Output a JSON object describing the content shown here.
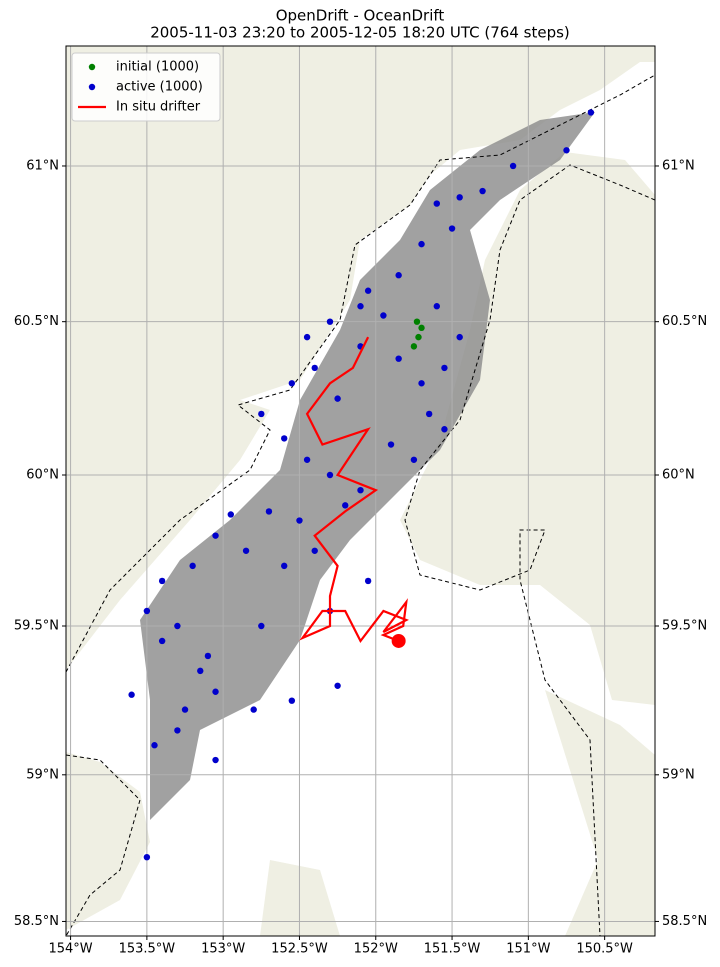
{
  "chart_data": {
    "type": "scatter",
    "title": "OpenDrift - OceanDrift",
    "subtitle": "2005-11-03 23:20 to 2005-12-05 18:20 UTC (764 steps)",
    "xlim": [
      -154.03,
      -150.17
    ],
    "ylim": [
      58.45,
      61.38
    ],
    "xticks": [
      {
        "value": -154,
        "label": "154°W"
      },
      {
        "value": -153.5,
        "label": "153.5°W"
      },
      {
        "value": -153,
        "label": "153°W"
      },
      {
        "value": -152.5,
        "label": "152.5°W"
      },
      {
        "value": -152,
        "label": "152°W"
      },
      {
        "value": -151.5,
        "label": "151.5°W"
      },
      {
        "value": -151,
        "label": "151°W"
      },
      {
        "value": -150.5,
        "label": "150.5°W"
      }
    ],
    "yticks": [
      {
        "value": 58.5,
        "label": "58.5°N"
      },
      {
        "value": 59,
        "label": "59°N"
      },
      {
        "value": 59.5,
        "label": "59.5°N"
      },
      {
        "value": 60,
        "label": "60°N"
      },
      {
        "value": 60.5,
        "label": "60.5°N"
      },
      {
        "value": 61,
        "label": "61°N"
      }
    ],
    "grid": true,
    "legend": "upper left",
    "series": [
      {
        "name": "initial (1000)",
        "color": "#008000",
        "type": "scatter",
        "x": [
          -151.72,
          -151.7,
          -151.75,
          -151.73
        ],
        "values": [
          60.45,
          60.48,
          60.42,
          60.5
        ]
      },
      {
        "name": "active (1000)",
        "color": "#0000cc",
        "type": "scatter",
        "x": [
          -150.59,
          -150.75,
          -151.1,
          -151.3,
          -151.45,
          -151.6,
          -151.5,
          -151.7,
          -151.85,
          -152.05,
          -151.95,
          -151.6,
          -151.45,
          -151.55,
          -151.7,
          -151.85,
          -152.1,
          -152.3,
          -152.4,
          -152.55,
          -152.75,
          -152.6,
          -152.45,
          -152.3,
          -152.1,
          -151.9,
          -151.65,
          -151.55,
          -151.75,
          -152.2,
          -152.5,
          -152.7,
          -152.95,
          -153.05,
          -152.85,
          -152.6,
          -152.4,
          -153.2,
          -153.4,
          -153.5,
          -153.3,
          -153.4,
          -153.15,
          -153.05,
          -153.25,
          -153.3,
          -153.45,
          -153.05,
          -153.6,
          -152.55,
          -152.8,
          -152.25,
          -153.5,
          -153.1,
          -152.75,
          -152.3,
          -152.05,
          -152.25,
          -152.45,
          -152.1
        ],
        "values": [
          61.17,
          61.05,
          61.0,
          60.92,
          60.9,
          60.88,
          60.8,
          60.75,
          60.65,
          60.6,
          60.52,
          60.55,
          60.45,
          60.35,
          60.3,
          60.38,
          60.42,
          60.5,
          60.35,
          60.3,
          60.2,
          60.12,
          60.05,
          60.0,
          59.95,
          60.1,
          60.2,
          60.15,
          60.05,
          59.9,
          59.85,
          59.88,
          59.87,
          59.8,
          59.75,
          59.7,
          59.75,
          59.7,
          59.65,
          59.55,
          59.5,
          59.45,
          59.35,
          59.28,
          59.22,
          59.15,
          59.1,
          59.05,
          59.27,
          59.25,
          59.22,
          59.3,
          58.72,
          59.4,
          59.5,
          59.55,
          59.65,
          60.25,
          60.45,
          60.55
        ]
      },
      {
        "name": "In situ drifter",
        "color": "#ff0000",
        "type": "line",
        "x": [
          -152.05,
          -152.15,
          -152.3,
          -152.45,
          -152.35,
          -152.05,
          -152.25,
          -152.0,
          -152.2,
          -152.4,
          -152.25,
          -152.3,
          -152.3,
          -152.48,
          -152.35,
          -152.2,
          -152.1,
          -151.95,
          -151.8,
          -151.95,
          -151.8,
          -151.82,
          -151.95,
          -151.85
        ],
        "values": [
          60.45,
          60.35,
          60.3,
          60.2,
          60.1,
          60.15,
          60.0,
          59.95,
          59.88,
          59.8,
          59.7,
          59.6,
          59.5,
          59.46,
          59.55,
          59.55,
          59.45,
          59.55,
          59.52,
          59.48,
          59.58,
          59.5,
          59.47,
          59.45
        ]
      }
    ]
  }
}
